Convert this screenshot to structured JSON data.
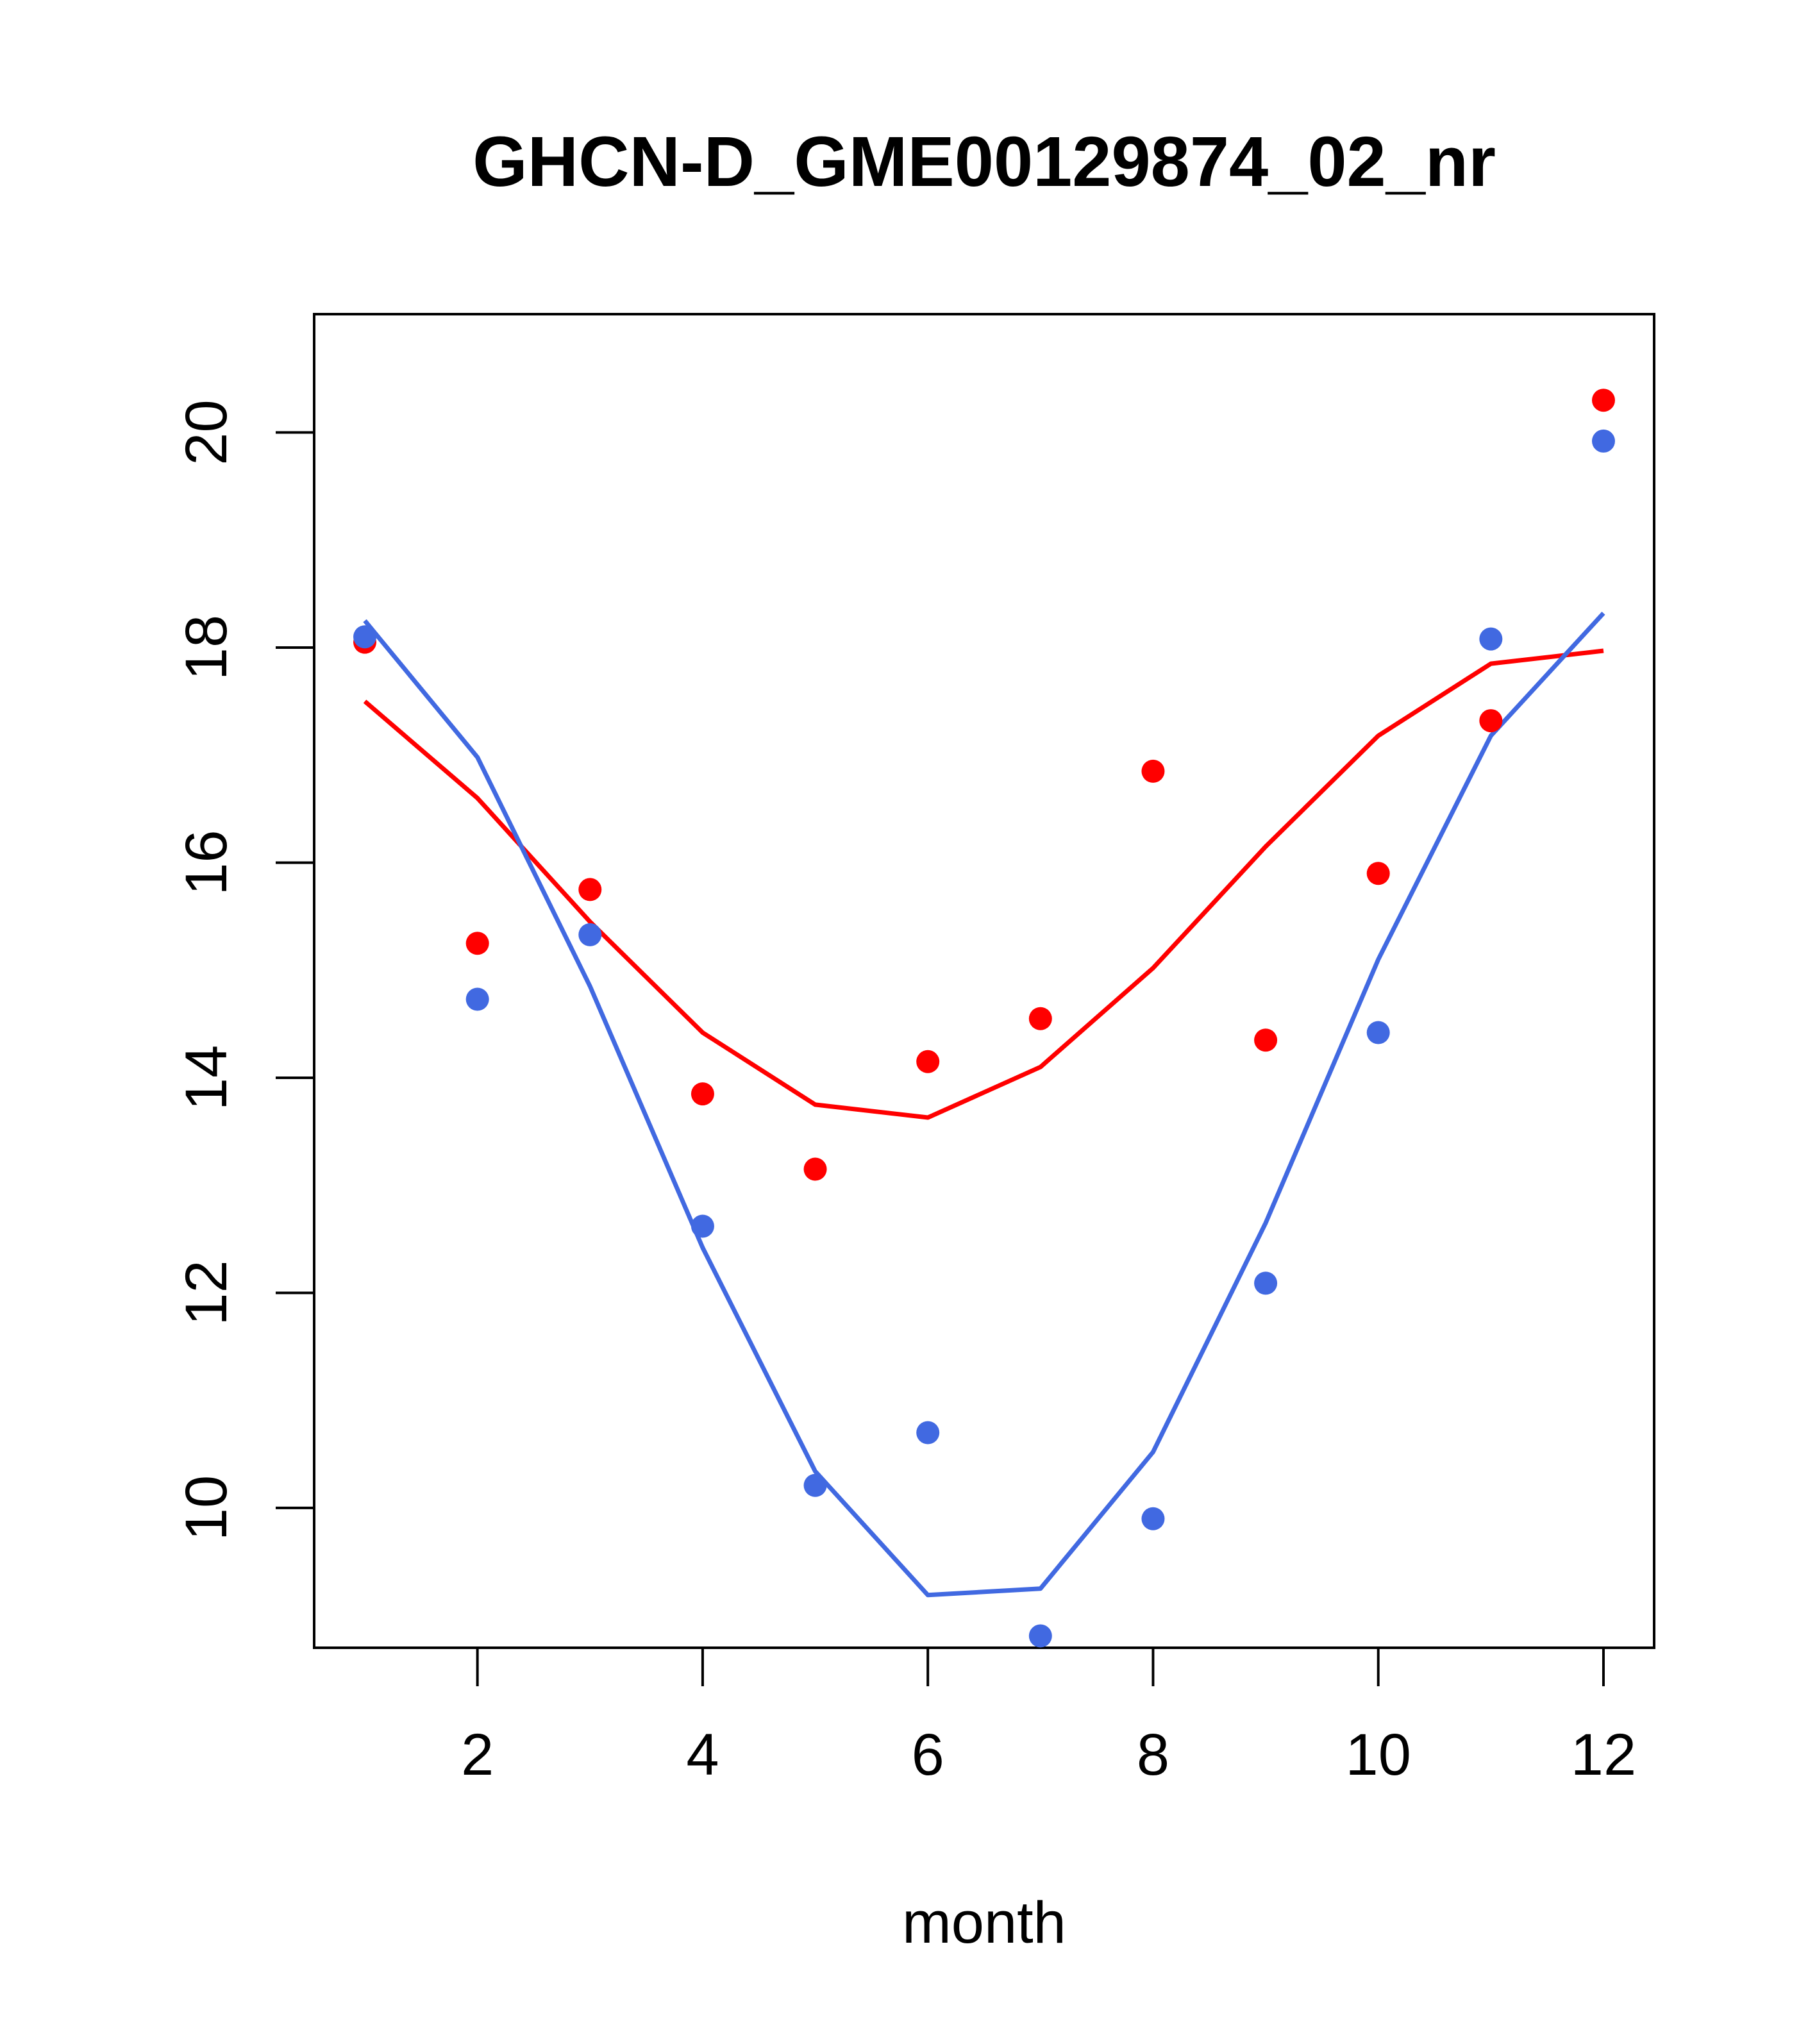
{
  "chart_data": {
    "type": "scatter",
    "title": "GHCN-D_GME00129874_02_nr",
    "xlabel": "month",
    "ylabel": "",
    "xlim": [
      0.55,
      12.45
    ],
    "ylim": [
      8.7,
      21.1
    ],
    "x_ticks": [
      2,
      4,
      6,
      8,
      10,
      12
    ],
    "y_ticks": [
      10,
      12,
      14,
      16,
      18,
      20
    ],
    "grid": false,
    "legend": "none",
    "series": [
      {
        "name": "red points",
        "kind": "points",
        "color": "#FF0000",
        "x": [
          1,
          2,
          3,
          4,
          5,
          6,
          7,
          8,
          9,
          10,
          11,
          12
        ],
        "values": [
          18.05,
          15.25,
          15.75,
          13.85,
          13.15,
          14.15,
          14.55,
          16.85,
          14.35,
          15.9,
          17.32,
          20.3
        ]
      },
      {
        "name": "blue points",
        "kind": "points",
        "color": "#4169E1",
        "x": [
          1,
          2,
          3,
          4,
          5,
          6,
          7,
          8,
          9,
          10,
          11,
          12
        ],
        "values": [
          18.1,
          14.73,
          15.33,
          12.62,
          10.21,
          10.7,
          8.81,
          9.9,
          12.09,
          14.42,
          18.08,
          19.92
        ]
      },
      {
        "name": "red line",
        "kind": "line",
        "color": "#FF0000",
        "x": [
          1,
          2,
          3,
          4,
          5,
          6,
          7,
          8,
          9,
          10,
          11,
          12
        ],
        "values": [
          17.5,
          16.6,
          15.45,
          14.42,
          13.75,
          13.63,
          14.1,
          15.02,
          16.15,
          17.18,
          17.85,
          17.97
        ]
      },
      {
        "name": "blue line",
        "kind": "line",
        "color": "#4169E1",
        "x": [
          1,
          2,
          3,
          4,
          5,
          6,
          7,
          8,
          9,
          10,
          11,
          12
        ],
        "values": [
          18.25,
          16.98,
          14.85,
          12.42,
          10.34,
          9.19,
          9.25,
          10.52,
          12.65,
          15.1,
          17.18,
          18.32
        ]
      }
    ]
  }
}
